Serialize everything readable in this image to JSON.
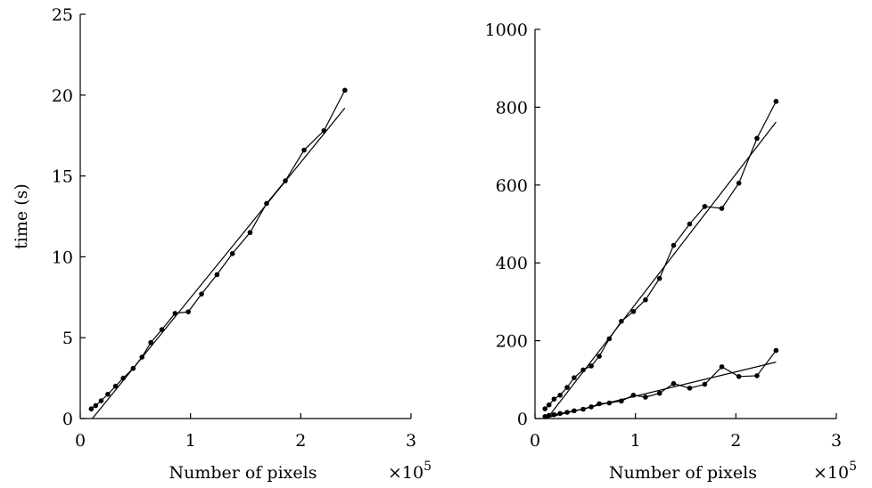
{
  "chart_data": [
    {
      "type": "line",
      "title": "",
      "xlabel": "Number of pixels",
      "ylabel": "time (s)",
      "x_multiplier_label": "×10",
      "x_multiplier_exp": "5",
      "xlim": [
        0,
        3
      ],
      "ylim": [
        0,
        25
      ],
      "xticks": [
        0,
        1,
        2,
        3
      ],
      "yticks": [
        0,
        5,
        10,
        15,
        20,
        25
      ],
      "xtick_labels": [
        "0",
        "1",
        "2",
        "3"
      ],
      "ytick_labels": [
        "0",
        "5",
        "10",
        "15",
        "20",
        "25"
      ],
      "grid": false,
      "series": [
        {
          "x": [
            0.1,
            0.14,
            0.19,
            0.25,
            0.32,
            0.39,
            0.48,
            0.56,
            0.64,
            0.74,
            0.86,
            0.98,
            1.1,
            1.24,
            1.38,
            1.54,
            1.69,
            1.86,
            2.03,
            2.21,
            2.4
          ],
          "values": [
            0.6,
            0.8,
            1.1,
            1.5,
            2.0,
            2.5,
            3.1,
            3.8,
            4.7,
            5.5,
            6.5,
            6.6,
            7.7,
            8.9,
            10.2,
            11.5,
            13.3,
            14.7,
            16.6,
            17.8,
            20.3
          ]
        }
      ],
      "fits": [
        {
          "x": [
            0.11,
            2.4
          ],
          "values": [
            0.0,
            19.2
          ]
        }
      ]
    },
    {
      "type": "line",
      "title": "",
      "xlabel": "Number of pixels",
      "ylabel": "",
      "x_multiplier_label": "×10",
      "x_multiplier_exp": "5",
      "xlim": [
        0,
        3
      ],
      "ylim": [
        0,
        1000
      ],
      "xticks": [
        0,
        1,
        2,
        3
      ],
      "yticks": [
        0,
        200,
        400,
        600,
        800,
        1000
      ],
      "xtick_labels": [
        "0",
        "1",
        "2",
        "3"
      ],
      "ytick_labels": [
        "0",
        "200",
        "400",
        "600",
        "800",
        "1000"
      ],
      "grid": false,
      "series": [
        {
          "x": [
            0.1,
            0.14,
            0.19,
            0.25,
            0.32,
            0.39,
            0.48,
            0.56,
            0.64,
            0.74,
            0.86,
            0.98,
            1.1,
            1.24,
            1.38,
            1.54,
            1.69,
            1.86,
            2.03,
            2.21,
            2.4
          ],
          "values": [
            25,
            35,
            50,
            60,
            80,
            105,
            125,
            135,
            160,
            205,
            250,
            275,
            305,
            360,
            445,
            500,
            545,
            540,
            605,
            720,
            815
          ]
        },
        {
          "x": [
            0.1,
            0.14,
            0.19,
            0.25,
            0.32,
            0.39,
            0.48,
            0.56,
            0.64,
            0.74,
            0.86,
            0.98,
            1.1,
            1.24,
            1.38,
            1.54,
            1.69,
            1.86,
            2.03,
            2.21,
            2.4
          ],
          "values": [
            5,
            8,
            10,
            13,
            16,
            20,
            24,
            30,
            38,
            40,
            45,
            60,
            55,
            65,
            90,
            78,
            88,
            133,
            108,
            110,
            175
          ]
        }
      ],
      "fits": [
        {
          "x": [
            0.12,
            2.4
          ],
          "values": [
            0,
            762
          ]
        },
        {
          "x": [
            0.08,
            2.4
          ],
          "values": [
            0,
            145
          ]
        }
      ]
    }
  ]
}
